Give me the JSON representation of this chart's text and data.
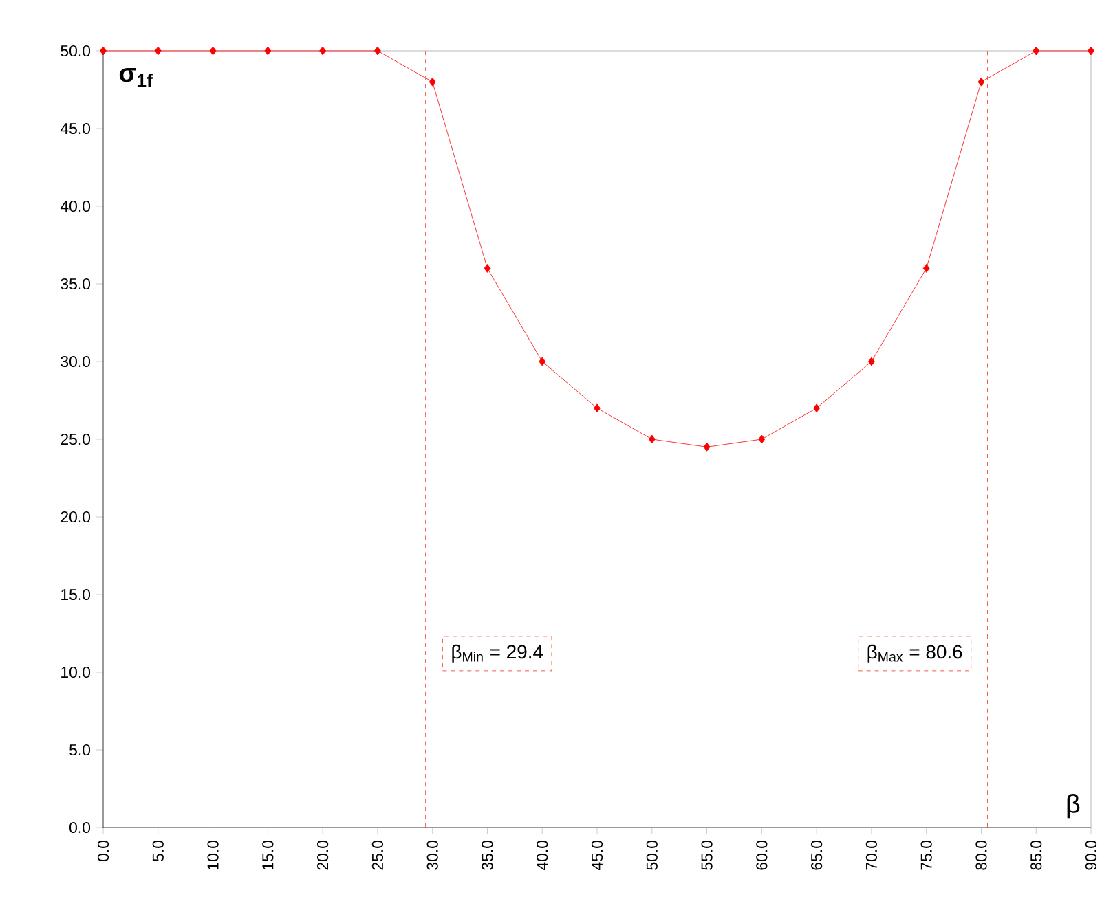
{
  "chart_data": {
    "type": "line",
    "xlabel": "β",
    "ylabel": "σ$_{1f}$",
    "x": [
      0,
      5,
      10,
      15,
      20,
      25,
      30,
      35,
      40,
      45,
      50,
      55,
      60,
      65,
      70,
      75,
      80,
      85,
      90
    ],
    "series": [
      {
        "color": "#ff0000",
        "values": [
          50,
          50,
          50,
          50,
          50,
          50,
          48,
          36,
          30,
          27,
          25,
          24.5,
          25,
          27,
          30,
          36,
          48,
          50,
          50
        ]
      }
    ],
    "marker": "diamond",
    "line_style": "solid",
    "xlim": [
      0,
      90
    ],
    "ylim": [
      0,
      50
    ],
    "xticks": [
      {
        "value": 0,
        "label": "0.0"
      },
      {
        "value": 5,
        "label": "5.0"
      },
      {
        "value": 10,
        "label": "10.0"
      },
      {
        "value": 15,
        "label": "15.0"
      },
      {
        "value": 20,
        "label": "20.0"
      },
      {
        "value": 25,
        "label": "25.0"
      },
      {
        "value": 30,
        "label": "30.0"
      },
      {
        "value": 35,
        "label": "35.0"
      },
      {
        "value": 40,
        "label": "40.0"
      },
      {
        "value": 45,
        "label": "45.0"
      },
      {
        "value": 50,
        "label": "50.0"
      },
      {
        "value": 55,
        "label": "55.0"
      },
      {
        "value": 60,
        "label": "60.0"
      },
      {
        "value": 65,
        "label": "65.0"
      },
      {
        "value": 70,
        "label": "70.0"
      },
      {
        "value": 75,
        "label": "75.0"
      },
      {
        "value": 80,
        "label": "80.0"
      },
      {
        "value": 85,
        "label": "85.0"
      },
      {
        "value": 90,
        "label": "90.0"
      }
    ],
    "yticks": [
      {
        "value": 0,
        "label": "0.0"
      },
      {
        "value": 5,
        "label": "5.0"
      },
      {
        "value": 10,
        "label": "10.0"
      },
      {
        "value": 15,
        "label": "15.0"
      },
      {
        "value": 20,
        "label": "20.0"
      },
      {
        "value": 25,
        "label": "25.0"
      },
      {
        "value": 30,
        "label": "30.0"
      },
      {
        "value": 35,
        "label": "35.0"
      },
      {
        "value": 40,
        "label": "40.0"
      },
      {
        "value": 45,
        "label": "45.0"
      },
      {
        "value": 50,
        "label": "50.0"
      }
    ],
    "ref_lines": [
      {
        "axis": "x",
        "value": 29.4,
        "label": "β$_{Min}$ = 29.4",
        "color": "#ee3311",
        "line_style": "dashed"
      },
      {
        "axis": "x",
        "value": 80.6,
        "label": "β$_{Max}$ = 80.6",
        "color": "#ee3311",
        "line_style": "dashed"
      }
    ]
  }
}
